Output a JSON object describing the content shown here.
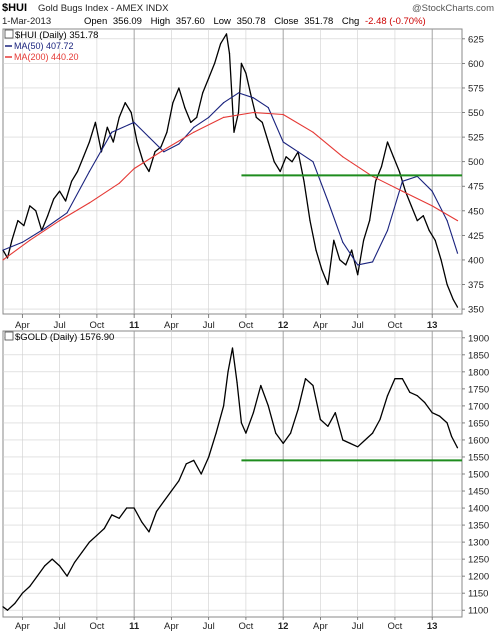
{
  "header": {
    "symbol": "$HUI",
    "name": "Gold Bugs Index - AMEX INDX",
    "credit": "@StockCharts.com",
    "date": "1-Mar-2013",
    "quote": {
      "open_label": "Open",
      "open": "356.09",
      "high_label": "High",
      "high": "357.60",
      "low_label": "Low",
      "low": "350.78",
      "close_label": "Close",
      "close": "351.78",
      "chg_label": "Chg",
      "chg": "-2.48 (-0.70%)"
    }
  },
  "colors": {
    "price": "#000000",
    "ma50": "#1a237e",
    "ma200": "#e53935",
    "support": "#1e8c1e",
    "quote": "#000000",
    "chg": "#cc0000",
    "grid": "#d0d0d0",
    "text": "#222222"
  },
  "chart_data": [
    {
      "type": "line",
      "legend": {
        "title": "$HUI (Daily) 351.78",
        "items": [
          "MA(50) 407.72",
          "MA(200) 440.20"
        ]
      },
      "x_tick_labels": [
        "Apr",
        "Jul",
        "Oct",
        "11",
        "Apr",
        "Jul",
        "Oct",
        "12",
        "Apr",
        "Jul",
        "Oct",
        "13"
      ],
      "x_tick_positions": [
        2010.25,
        2010.5,
        2010.75,
        2011.0,
        2011.25,
        2011.5,
        2011.75,
        2012.0,
        2012.25,
        2012.5,
        2012.75,
        2013.0
      ],
      "x_range": [
        2010.12,
        2013.2
      ],
      "y_ticks": [
        350,
        375,
        400,
        425,
        450,
        475,
        500,
        525,
        550,
        575,
        600,
        625
      ],
      "ylim": [
        345,
        635
      ],
      "grid": true,
      "series": [
        {
          "name": "$HUI",
          "x": [
            2010.12,
            2010.15,
            2010.18,
            2010.22,
            2010.26,
            2010.3,
            2010.34,
            2010.38,
            2010.42,
            2010.46,
            2010.5,
            2010.54,
            2010.58,
            2010.62,
            2010.66,
            2010.7,
            2010.74,
            2010.78,
            2010.82,
            2010.86,
            2010.9,
            2010.94,
            2010.98,
            2011.02,
            2011.06,
            2011.1,
            2011.14,
            2011.18,
            2011.22,
            2011.26,
            2011.3,
            2011.34,
            2011.38,
            2011.42,
            2011.46,
            2011.5,
            2011.54,
            2011.58,
            2011.62,
            2011.64,
            2011.67,
            2011.7,
            2011.72,
            2011.75,
            2011.78,
            2011.82,
            2011.86,
            2011.9,
            2011.94,
            2011.98,
            2012.02,
            2012.06,
            2012.1,
            2012.14,
            2012.18,
            2012.22,
            2012.26,
            2012.3,
            2012.34,
            2012.38,
            2012.42,
            2012.46,
            2012.5,
            2012.54,
            2012.58,
            2012.62,
            2012.66,
            2012.7,
            2012.74,
            2012.78,
            2012.82,
            2012.86,
            2012.9,
            2012.94,
            2012.98,
            2013.02,
            2013.06,
            2013.1,
            2013.14,
            2013.17
          ],
          "y": [
            410,
            402,
            420,
            440,
            435,
            455,
            450,
            430,
            445,
            462,
            470,
            460,
            480,
            490,
            505,
            520,
            540,
            510,
            535,
            520,
            545,
            560,
            550,
            520,
            500,
            490,
            510,
            515,
            530,
            560,
            575,
            555,
            540,
            545,
            570,
            585,
            600,
            620,
            630,
            610,
            530,
            550,
            600,
            590,
            570,
            545,
            540,
            520,
            500,
            490,
            505,
            500,
            510,
            480,
            440,
            410,
            390,
            375,
            420,
            400,
            395,
            410,
            385,
            420,
            440,
            480,
            495,
            520,
            505,
            490,
            470,
            455,
            440,
            445,
            430,
            420,
            400,
            375,
            360,
            352
          ],
          "color_key": "price"
        },
        {
          "name": "MA(50)",
          "x": [
            2010.12,
            2010.25,
            2010.4,
            2010.55,
            2010.7,
            2010.85,
            2011.0,
            2011.1,
            2011.2,
            2011.3,
            2011.4,
            2011.5,
            2011.6,
            2011.7,
            2011.8,
            2011.9,
            2012.0,
            2012.1,
            2012.2,
            2012.3,
            2012.4,
            2012.5,
            2012.6,
            2012.7,
            2012.8,
            2012.9,
            2013.0,
            2013.1,
            2013.17
          ],
          "y": [
            410,
            418,
            432,
            448,
            490,
            530,
            540,
            525,
            510,
            518,
            535,
            545,
            560,
            570,
            565,
            555,
            520,
            510,
            500,
            460,
            418,
            395,
            398,
            430,
            480,
            485,
            470,
            440,
            407
          ],
          "color_key": "ma50"
        },
        {
          "name": "MA(200)",
          "x": [
            2010.12,
            2010.3,
            2010.5,
            2010.7,
            2010.9,
            2011.0,
            2011.2,
            2011.4,
            2011.6,
            2011.8,
            2012.0,
            2012.2,
            2012.4,
            2012.6,
            2012.8,
            2013.0,
            2013.17
          ],
          "y": [
            400,
            420,
            440,
            458,
            478,
            493,
            512,
            530,
            545,
            550,
            548,
            530,
            505,
            485,
            470,
            455,
            440
          ],
          "color_key": "ma200"
        }
      ],
      "support_line": {
        "y": 486,
        "x_start": 2011.72,
        "x_end": 2013.2
      }
    },
    {
      "type": "line",
      "legend": {
        "title": "$GOLD (Daily) 1576.90",
        "items": []
      },
      "x_tick_labels": [
        "Apr",
        "Jul",
        "Oct",
        "11",
        "Apr",
        "Jul",
        "Oct",
        "12",
        "Apr",
        "Jul",
        "Oct",
        "13"
      ],
      "x_tick_positions": [
        2010.25,
        2010.5,
        2010.75,
        2011.0,
        2011.25,
        2011.5,
        2011.75,
        2012.0,
        2012.25,
        2012.5,
        2012.75,
        2013.0
      ],
      "x_range": [
        2010.12,
        2013.2
      ],
      "y_ticks": [
        1100,
        1150,
        1200,
        1250,
        1300,
        1350,
        1400,
        1450,
        1500,
        1550,
        1600,
        1650,
        1700,
        1750,
        1800,
        1850,
        1900
      ],
      "ylim": [
        1080,
        1920
      ],
      "grid": true,
      "series": [
        {
          "name": "$GOLD",
          "x": [
            2010.12,
            2010.15,
            2010.2,
            2010.25,
            2010.3,
            2010.35,
            2010.4,
            2010.45,
            2010.5,
            2010.55,
            2010.6,
            2010.65,
            2010.7,
            2010.75,
            2010.8,
            2010.85,
            2010.9,
            2010.95,
            2011.0,
            2011.05,
            2011.1,
            2011.15,
            2011.2,
            2011.25,
            2011.3,
            2011.35,
            2011.4,
            2011.45,
            2011.5,
            2011.55,
            2011.6,
            2011.63,
            2011.66,
            2011.69,
            2011.72,
            2011.75,
            2011.8,
            2011.85,
            2011.9,
            2011.95,
            2012.0,
            2012.05,
            2012.1,
            2012.15,
            2012.2,
            2012.25,
            2012.3,
            2012.35,
            2012.4,
            2012.45,
            2012.5,
            2012.55,
            2012.6,
            2012.65,
            2012.7,
            2012.75,
            2012.8,
            2012.85,
            2012.9,
            2012.95,
            2013.0,
            2013.05,
            2013.1,
            2013.13,
            2013.17
          ],
          "y": [
            1110,
            1100,
            1120,
            1150,
            1170,
            1200,
            1230,
            1250,
            1230,
            1200,
            1240,
            1270,
            1300,
            1320,
            1340,
            1380,
            1370,
            1400,
            1400,
            1360,
            1330,
            1390,
            1420,
            1450,
            1480,
            1530,
            1540,
            1500,
            1550,
            1620,
            1700,
            1800,
            1870,
            1770,
            1650,
            1620,
            1680,
            1760,
            1700,
            1620,
            1590,
            1620,
            1690,
            1780,
            1760,
            1660,
            1640,
            1680,
            1600,
            1590,
            1580,
            1600,
            1620,
            1660,
            1730,
            1780,
            1780,
            1740,
            1730,
            1710,
            1680,
            1670,
            1650,
            1610,
            1576.9
          ],
          "color_key": "price"
        }
      ],
      "support_line": {
        "y": 1540,
        "x_start": 2011.72,
        "x_end": 2013.2
      }
    }
  ]
}
